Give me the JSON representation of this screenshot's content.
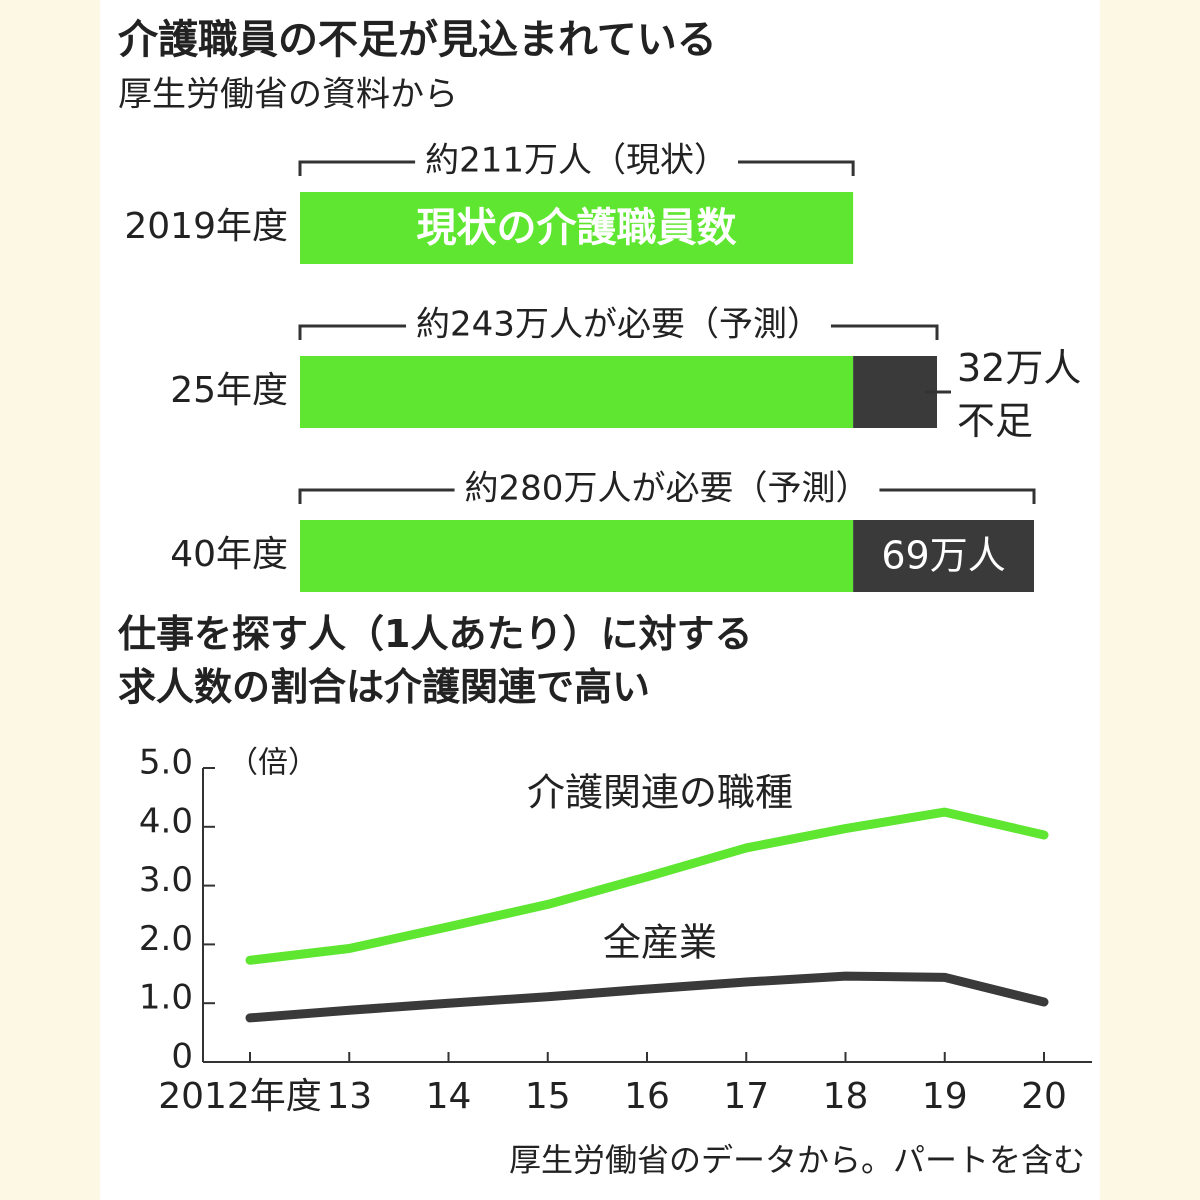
{
  "chart_data": [
    {
      "type": "hbar-stacked",
      "title": "介護職員の不足が見込まれている",
      "subtitle": "厚生労働省の資料から",
      "categories": [
        "2019年度",
        "25年度",
        "40年度"
      ],
      "series": [
        {
          "name": "現状の介護職員数",
          "color": "#5fe630",
          "values": [
            211,
            211,
            211
          ]
        },
        {
          "color": "#3a3a3a",
          "values": [
            null,
            32,
            69
          ],
          "value_labels": [
            null,
            "32万人\n不足",
            "69万人"
          ]
        }
      ],
      "totals": [
        211,
        243,
        280
      ],
      "total_labels": [
        "約211万人（現状）",
        "約243万人が必要（予測）",
        "約280万人が必要（予測）"
      ]
    },
    {
      "type": "line",
      "title": "仕事を探す人（1人あたり）に対する\n求人数の割合は介護関連で高い",
      "y_unit": "（倍）",
      "categories": [
        "2012年度",
        "13",
        "14",
        "15",
        "16",
        "17",
        "18",
        "19",
        "20"
      ],
      "series": [
        {
          "name": "介護関連の職種",
          "color": "#5fe630",
          "values": [
            1.73,
            1.93,
            2.3,
            2.68,
            3.15,
            3.64,
            3.97,
            4.25,
            3.86
          ]
        },
        {
          "name": "全産業",
          "color": "#3a3a3a",
          "values": [
            0.75,
            0.88,
            1.0,
            1.11,
            1.24,
            1.36,
            1.46,
            1.44,
            1.02
          ]
        }
      ],
      "ylim": [
        0,
        5
      ],
      "yticks": [
        0,
        {
          "value": 1,
          "label": "1.0"
        },
        {
          "value": 2,
          "label": "2.0"
        },
        {
          "value": 3,
          "label": "3.0"
        },
        {
          "value": 4,
          "label": "4.0"
        },
        {
          "value": 5,
          "label": "5.0"
        }
      ],
      "note": "厚生労働省のデータから。パートを含む"
    }
  ]
}
